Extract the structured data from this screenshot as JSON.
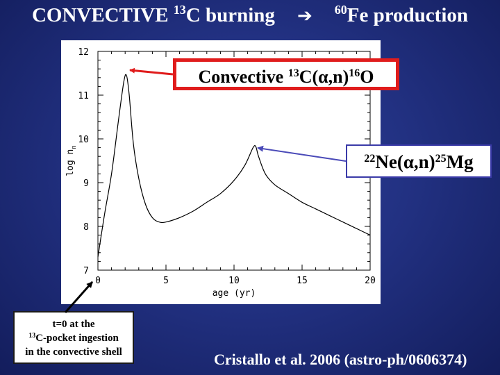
{
  "title": {
    "part1": "CONVECTIVE ",
    "sup1": "13",
    "part2": "C burning",
    "arrow": "➔",
    "sup2": "60",
    "part3": "Fe production"
  },
  "annotations": {
    "c13": {
      "prefix": "Convective ",
      "sup1": "13",
      "mid": "C(α,n)",
      "sup2": "16",
      "suffix": "O"
    },
    "ne22": {
      "sup1": "22",
      "mid": "Ne(α,n)",
      "sup2": "25",
      "suffix": "Mg"
    }
  },
  "note": {
    "line1": "t=0 at the",
    "sup": "13",
    "line2": "C-pocket ingestion",
    "line3": "in the convective shell"
  },
  "citation": "Cristallo et al. 2006 (astro-ph/0606374)",
  "colors": {
    "arrow_red": "#e01c1c",
    "arrow_blue": "#4a4ab8",
    "arrow_black": "#000000"
  },
  "chart_data": {
    "type": "line",
    "xlabel": "age (yr)",
    "ylabel": "log n",
    "ylabel_sub": "n",
    "xlim": [
      0,
      20
    ],
    "ylim": [
      7,
      12
    ],
    "xticks": [
      0,
      5,
      10,
      15,
      20
    ],
    "yticks": [
      7,
      8,
      9,
      10,
      11,
      12
    ],
    "grid": false,
    "series": [
      {
        "x": [
          0,
          0.5,
          1.0,
          1.5,
          1.9,
          2.1,
          2.3,
          2.6,
          3.0,
          3.5,
          4.0,
          4.5,
          5.0,
          6.0,
          7.0,
          8.0,
          9.0,
          10.0,
          10.8,
          11.4,
          11.6,
          11.8,
          12.3,
          13.0,
          14.0,
          15.0,
          16.0,
          17.0,
          18.0,
          19.0,
          20.0
        ],
        "y": [
          7.3,
          8.3,
          9.2,
          10.4,
          11.3,
          11.45,
          11.0,
          9.9,
          9.1,
          8.5,
          8.2,
          8.1,
          8.1,
          8.2,
          8.35,
          8.55,
          8.75,
          9.05,
          9.4,
          9.8,
          9.82,
          9.6,
          9.2,
          8.95,
          8.75,
          8.55,
          8.4,
          8.25,
          8.1,
          7.95,
          7.8
        ]
      }
    ]
  }
}
